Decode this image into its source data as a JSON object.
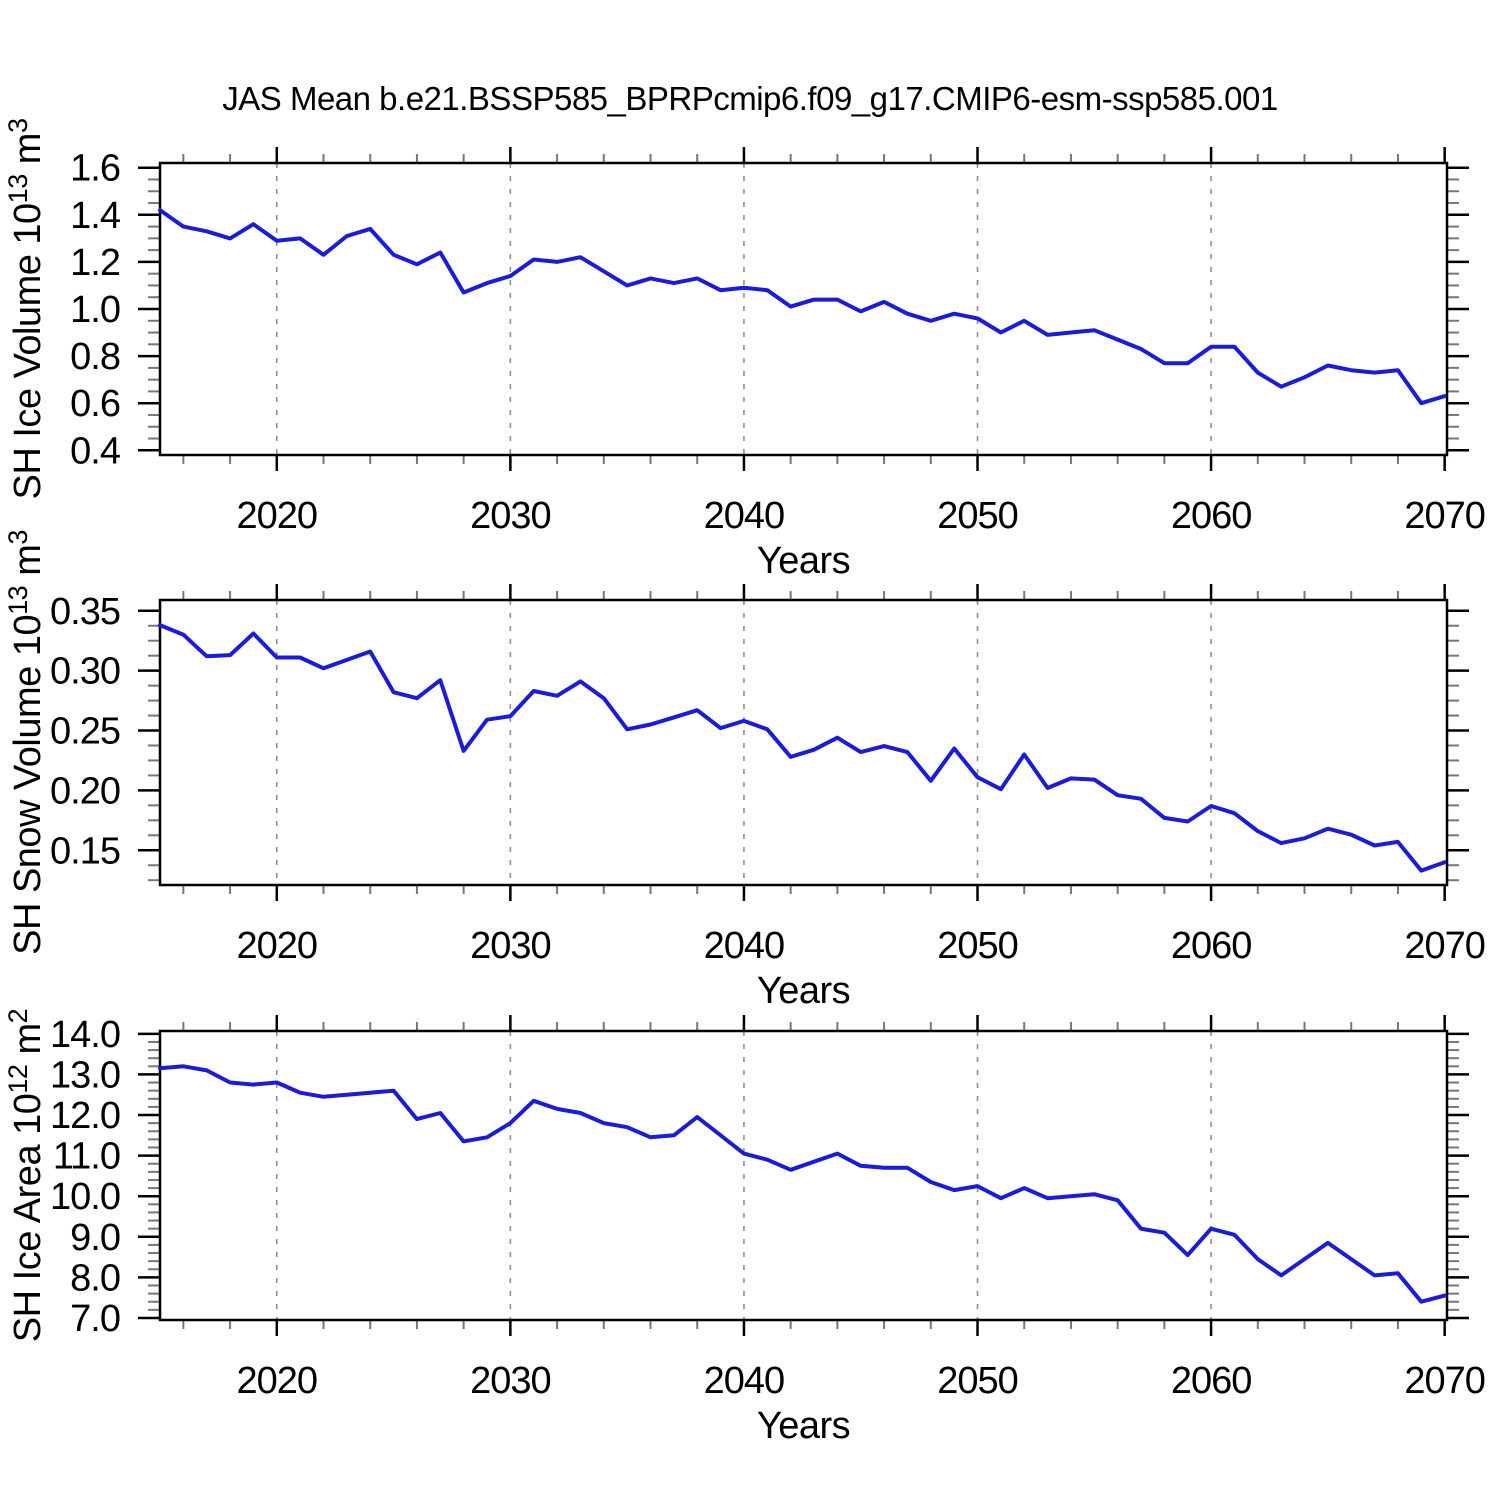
{
  "title": "JAS Mean b.e21.BSSP585_BPRPcmip6.f09_g17.CMIP6-esm-ssp585.001",
  "line_color": "#1b1bd8",
  "axis_color": "#000000",
  "minor_tick_color": "#777777",
  "grid_color": "#909090",
  "x_axis": {
    "xlabel": "Years",
    "xlim": [
      2015,
      2070.1
    ],
    "xticks": [
      {
        "year": 2020,
        "label": "2020"
      },
      {
        "year": 2030,
        "label": "2030"
      },
      {
        "year": 2040,
        "label": "2040"
      },
      {
        "year": 2050,
        "label": "2050"
      },
      {
        "year": 2060,
        "label": "2060"
      },
      {
        "year": 2070,
        "label": "2070"
      }
    ],
    "xminor_step": 2,
    "grid_years": [
      2020,
      2030,
      2040,
      2050,
      2060
    ]
  },
  "years": [
    2015,
    2016,
    2017,
    2018,
    2019,
    2020,
    2021,
    2022,
    2023,
    2024,
    2025,
    2026,
    2027,
    2028,
    2029,
    2030,
    2031,
    2032,
    2033,
    2034,
    2035,
    2036,
    2037,
    2038,
    2039,
    2040,
    2041,
    2042,
    2043,
    2044,
    2045,
    2046,
    2047,
    2048,
    2049,
    2050,
    2051,
    2052,
    2053,
    2054,
    2055,
    2056,
    2057,
    2058,
    2059,
    2060,
    2061,
    2062,
    2063,
    2064,
    2065,
    2066,
    2067,
    2068,
    2069,
    2070
  ],
  "chart_data": [
    {
      "type": "line",
      "name": "sh-ice-volume",
      "ylabel_segments": [
        {
          "t": "SH Ice Volume 10",
          "sup": false
        },
        {
          "t": "13",
          "sup": true
        },
        {
          "t": " m",
          "sup": false
        },
        {
          "t": "3",
          "sup": true
        }
      ],
      "ylim": [
        0.38,
        1.62
      ],
      "yticks": [
        {
          "v": 0.4,
          "label": "0.4"
        },
        {
          "v": 0.6,
          "label": "0.6"
        },
        {
          "v": 0.8,
          "label": "0.8"
        },
        {
          "v": 1.0,
          "label": "1.0"
        },
        {
          "v": 1.2,
          "label": "1.2"
        },
        {
          "v": 1.4,
          "label": "1.4"
        },
        {
          "v": 1.6,
          "label": "1.6"
        }
      ],
      "yminor_step": 0.05,
      "values": [
        1.42,
        1.35,
        1.33,
        1.3,
        1.36,
        1.29,
        1.3,
        1.23,
        1.31,
        1.34,
        1.23,
        1.19,
        1.24,
        1.07,
        1.11,
        1.14,
        1.21,
        1.2,
        1.22,
        1.16,
        1.1,
        1.13,
        1.11,
        1.13,
        1.08,
        1.09,
        1.08,
        1.01,
        1.04,
        1.04,
        0.99,
        1.03,
        0.98,
        0.95,
        0.98,
        0.96,
        0.9,
        0.95,
        0.89,
        0.9,
        0.91,
        0.87,
        0.83,
        0.77,
        0.77,
        0.84,
        0.84,
        0.73,
        0.67,
        0.71,
        0.76,
        0.74,
        0.73,
        0.74,
        0.6,
        0.63
      ]
    },
    {
      "type": "line",
      "name": "sh-snow-volume",
      "ylabel_segments": [
        {
          "t": "SH Snow Volume 10",
          "sup": false
        },
        {
          "t": "13",
          "sup": true
        },
        {
          "t": " m",
          "sup": false
        },
        {
          "t": "3",
          "sup": true
        }
      ],
      "ylim": [
        0.121,
        0.359
      ],
      "yticks": [
        {
          "v": 0.15,
          "label": "0.15"
        },
        {
          "v": 0.2,
          "label": "0.20"
        },
        {
          "v": 0.25,
          "label": "0.25"
        },
        {
          "v": 0.3,
          "label": "0.30"
        },
        {
          "v": 0.35,
          "label": "0.35"
        }
      ],
      "yminor_step": 0.0125,
      "values": [
        0.338,
        0.33,
        0.312,
        0.313,
        0.331,
        0.311,
        0.311,
        0.302,
        0.309,
        0.316,
        0.282,
        0.277,
        0.292,
        0.233,
        0.259,
        0.262,
        0.283,
        0.279,
        0.291,
        0.277,
        0.251,
        0.255,
        0.261,
        0.267,
        0.252,
        0.258,
        0.251,
        0.228,
        0.234,
        0.244,
        0.232,
        0.237,
        0.232,
        0.208,
        0.235,
        0.211,
        0.201,
        0.23,
        0.202,
        0.21,
        0.209,
        0.196,
        0.193,
        0.177,
        0.174,
        0.187,
        0.181,
        0.166,
        0.156,
        0.16,
        0.168,
        0.163,
        0.154,
        0.157,
        0.133,
        0.14
      ]
    },
    {
      "type": "line",
      "name": "sh-ice-area",
      "ylabel_segments": [
        {
          "t": "SH Ice Area 10",
          "sup": false
        },
        {
          "t": "12",
          "sup": true
        },
        {
          "t": " m",
          "sup": false
        },
        {
          "t": "2",
          "sup": true
        }
      ],
      "ylim": [
        6.95,
        14.07
      ],
      "yticks": [
        {
          "v": 7.0,
          "label": "7.0"
        },
        {
          "v": 8.0,
          "label": "8.0"
        },
        {
          "v": 9.0,
          "label": "9.0"
        },
        {
          "v": 10.0,
          "label": "10.0"
        },
        {
          "v": 11.0,
          "label": "11.0"
        },
        {
          "v": 12.0,
          "label": "12.0"
        },
        {
          "v": 13.0,
          "label": "13.0"
        },
        {
          "v": 14.0,
          "label": "14.0"
        }
      ],
      "yminor_step": 0.2,
      "values": [
        13.15,
        13.2,
        13.1,
        12.8,
        12.75,
        12.8,
        12.55,
        12.45,
        12.5,
        12.55,
        12.6,
        11.9,
        12.05,
        11.35,
        11.45,
        11.8,
        12.35,
        12.15,
        12.05,
        11.8,
        11.7,
        11.45,
        11.5,
        11.95,
        11.5,
        11.05,
        10.9,
        10.65,
        10.85,
        11.05,
        10.75,
        10.7,
        10.7,
        10.35,
        10.15,
        10.25,
        9.95,
        10.2,
        9.95,
        10.0,
        10.05,
        9.9,
        9.2,
        9.1,
        8.55,
        9.2,
        9.05,
        8.45,
        8.05,
        8.45,
        8.85,
        8.45,
        8.05,
        8.1,
        7.4,
        7.55
      ]
    }
  ]
}
